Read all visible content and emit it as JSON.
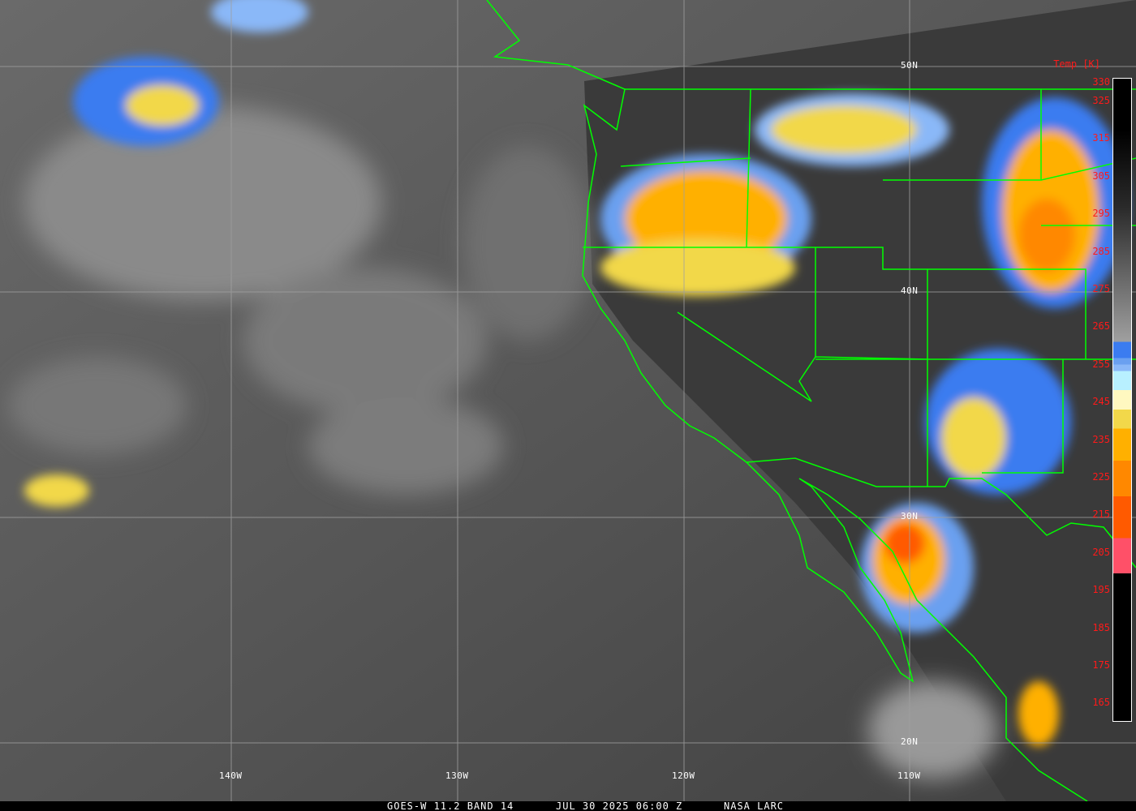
{
  "caption": {
    "product": "GOES-W 11.2 BAND 14",
    "datetime": "JUL 30 2025 06:00 Z",
    "source": "NASA LARC"
  },
  "grid": {
    "latitudes": [
      "50N",
      "40N",
      "30N",
      "20N"
    ],
    "longitudes": [
      "140W",
      "130W",
      "120W",
      "110W"
    ],
    "line_color": "#a0a0a0"
  },
  "boundary_color": "#00ff00",
  "colorbar": {
    "title": "Temp [K]",
    "labels": [
      "330",
      "325",
      "315",
      "305",
      "295",
      "285",
      "275",
      "265",
      "255",
      "245",
      "235",
      "225",
      "215",
      "205",
      "195",
      "185",
      "175",
      "165"
    ],
    "label_color": "#ff1a1a",
    "segments": [
      {
        "from": 330,
        "to": 262,
        "color": "gradient-black-to-gray"
      },
      {
        "color": "#3b7cf0"
      },
      {
        "color": "#6aa0f0"
      },
      {
        "color": "#8ab8f8"
      },
      {
        "color": "#b8f0ff"
      },
      {
        "color": "#fff8c0"
      },
      {
        "color": "#f2d84a"
      },
      {
        "color": "#ffb000"
      },
      {
        "color": "#ff8800"
      },
      {
        "color": "#ff5a00"
      },
      {
        "color": "#ff5068"
      },
      {
        "color": "#000000"
      }
    ]
  }
}
